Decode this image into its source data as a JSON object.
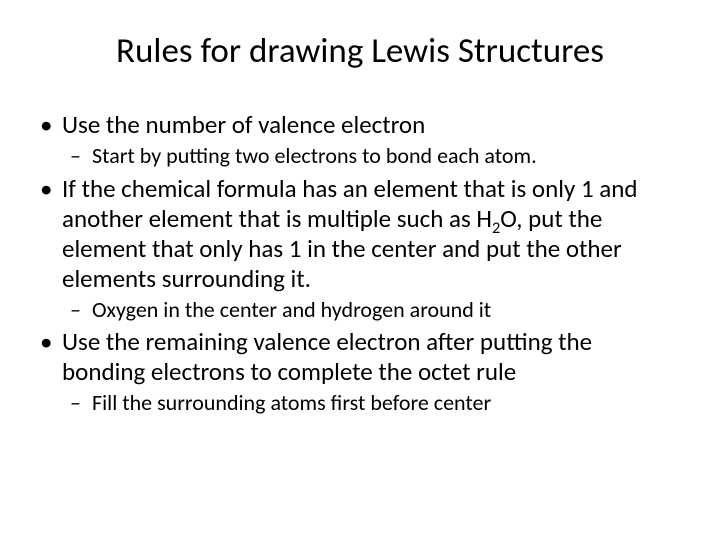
{
  "title": "Rules for drawing Lewis Structures",
  "bullets": [
    {
      "text": "Use the number of valence electron",
      "sub": [
        "Start by putting two electrons to bond each atom."
      ]
    },
    {
      "text_parts": [
        "If the chemical formula has an element that is only 1 and another element that is multiple such as H",
        "2",
        "O, put the element that only has 1 in the center and put the other elements surrounding it."
      ],
      "sub": [
        "Oxygen in the center and hydrogen around it"
      ]
    },
    {
      "text": "Use the remaining valence electron after putting the bonding electrons to complete the octet rule",
      "sub": [
        "Fill the surrounding atoms first before center"
      ]
    }
  ],
  "colors": {
    "background": "#ffffff",
    "text": "#000000"
  },
  "typography": {
    "title_fontsize": 35,
    "bullet_fontsize": 25,
    "subbullet_fontsize": 22,
    "font_family": "Calibri"
  }
}
